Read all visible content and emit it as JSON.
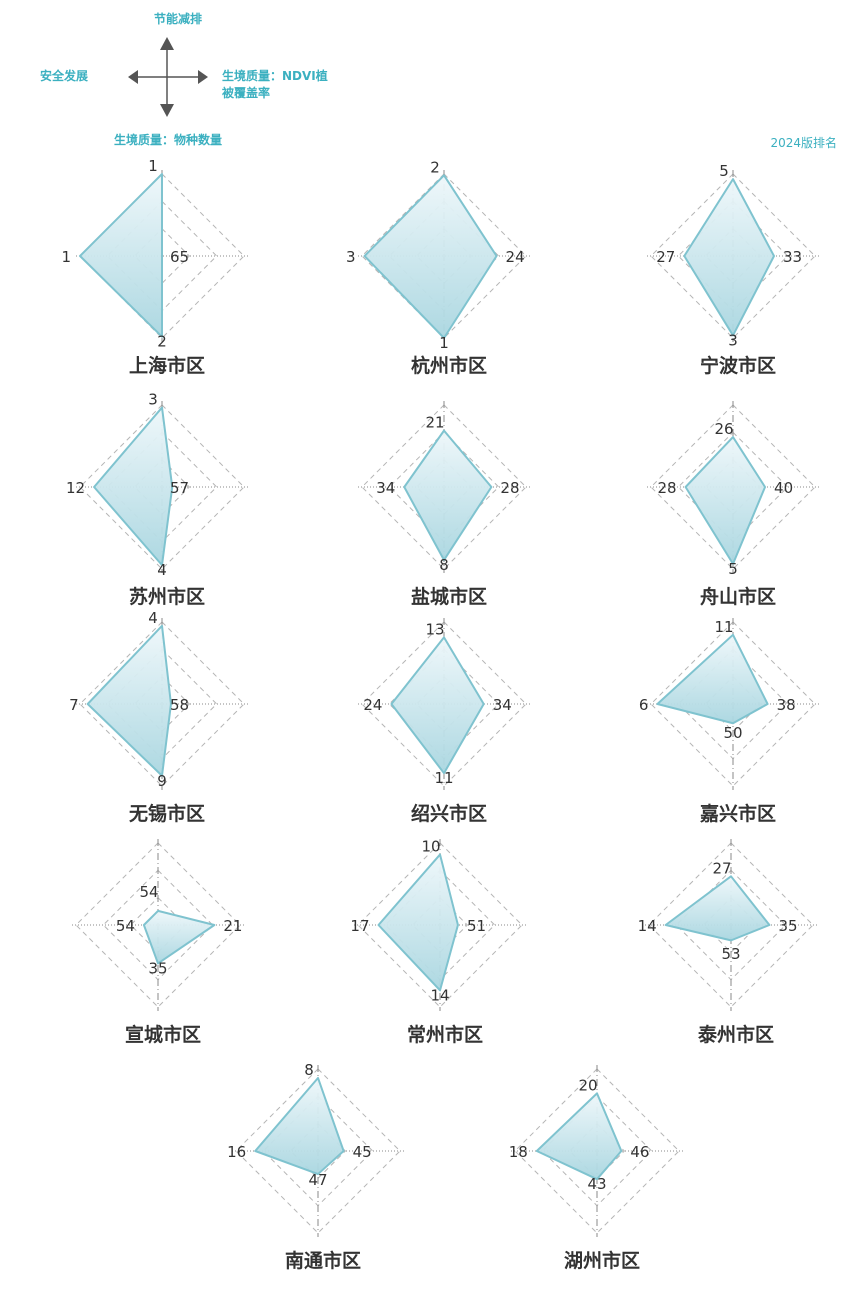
{
  "legend": {
    "up": "节能减排",
    "left": "安全发展",
    "right_line1": "生境质量：NDVI植",
    "right_line2": "被覆盖率",
    "down": "生境质量：物种数量"
  },
  "rank_note": "2024版排名",
  "colors": {
    "stroke": "#7fc3cf",
    "fill": "#cfe8ee",
    "legend_text": "#3bb0c0",
    "arrow": "#555555",
    "guide": "#b5b5b5"
  },
  "chart_data": {
    "type": "radar",
    "axes": [
      "节能减排",
      "生境质量：NDVI植被覆盖率",
      "生境质量：物种数量",
      "安全发展"
    ],
    "rank_scale": {
      "best": 1,
      "worst": 65
    },
    "items": [
      {
        "city": "上海市区",
        "ranks": [
          1,
          65,
          2,
          1
        ]
      },
      {
        "city": "杭州市区",
        "ranks": [
          2,
          24,
          1,
          3
        ]
      },
      {
        "city": "宁波市区",
        "ranks": [
          5,
          33,
          3,
          27
        ]
      },
      {
        "city": "苏州市区",
        "ranks": [
          3,
          57,
          4,
          12
        ]
      },
      {
        "city": "盐城市区",
        "ranks": [
          21,
          28,
          8,
          34
        ]
      },
      {
        "city": "舟山市区",
        "ranks": [
          26,
          40,
          5,
          28
        ]
      },
      {
        "city": "无锡市区",
        "ranks": [
          4,
          58,
          9,
          7
        ]
      },
      {
        "city": "绍兴市区",
        "ranks": [
          13,
          34,
          11,
          24
        ]
      },
      {
        "city": "嘉兴市区",
        "ranks": [
          11,
          38,
          50,
          6
        ]
      },
      {
        "city": "宣城市区",
        "ranks": [
          54,
          21,
          35,
          54
        ]
      },
      {
        "city": "常州市区",
        "ranks": [
          10,
          51,
          14,
          17
        ]
      },
      {
        "city": "泰州市区",
        "ranks": [
          27,
          35,
          53,
          14
        ]
      },
      {
        "city": "南通市区",
        "ranks": [
          8,
          45,
          47,
          16
        ]
      },
      {
        "city": "湖州市区",
        "ranks": [
          20,
          46,
          43,
          18
        ]
      }
    ]
  }
}
